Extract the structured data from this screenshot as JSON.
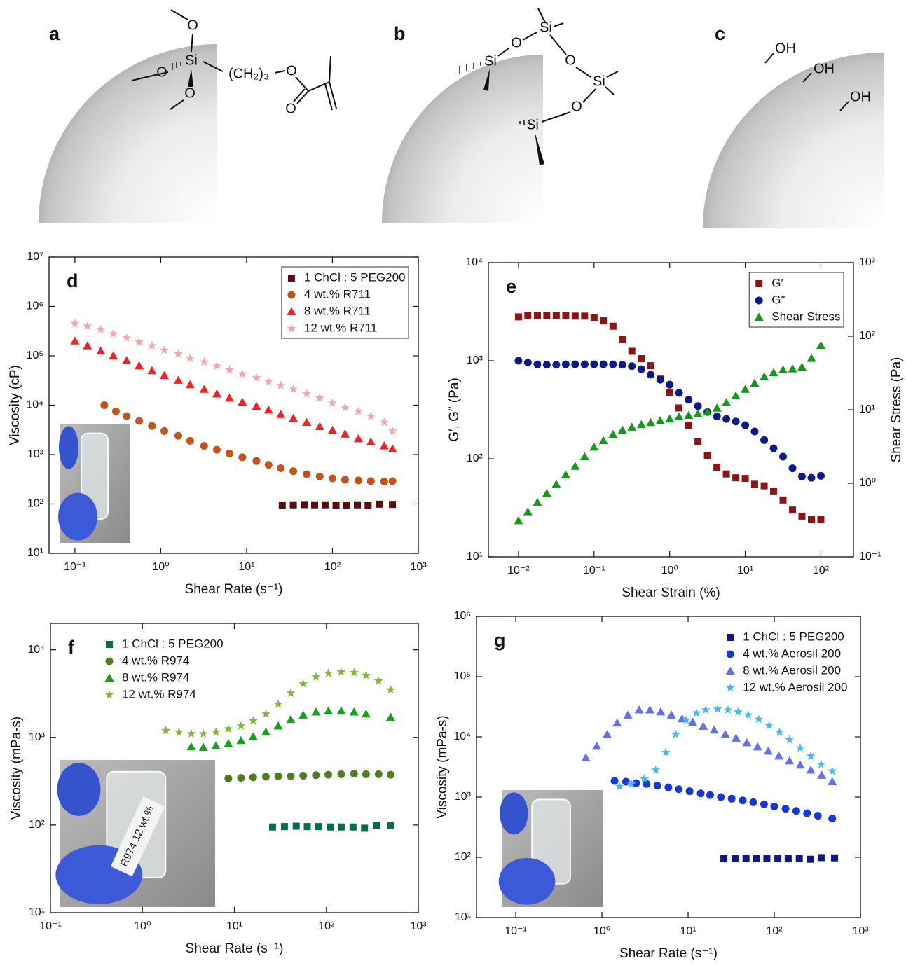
{
  "diagrams": [
    {
      "label": "a",
      "atoms": [
        "O",
        "Si",
        "O",
        "O",
        "(CH₂)₃",
        "O",
        "O"
      ]
    },
    {
      "label": "b",
      "atoms": [
        "Si",
        "O",
        "Si",
        "O",
        "Si",
        "O",
        "Si"
      ]
    },
    {
      "label": "c",
      "atoms": [
        "OH",
        "OH",
        "OH"
      ]
    }
  ],
  "chart_data": [
    {
      "type": "scatter",
      "panel_label": "d",
      "xlabel": "Shear Rate (s⁻¹)",
      "ylabel": "Viscosity (cP)",
      "xlog": true,
      "ylog": true,
      "xlim": [
        0.05,
        1000
      ],
      "ylim": [
        10,
        10000000
      ],
      "xticks": [
        {
          "value": 0.1,
          "label": "10⁻¹"
        },
        {
          "value": 1,
          "label": "10⁰"
        },
        {
          "value": 10,
          "label": "10¹"
        },
        {
          "value": 100,
          "label": "10²"
        },
        {
          "value": 1000,
          "label": "10³"
        }
      ],
      "yticks": [
        {
          "value": 10,
          "label": "10¹"
        },
        {
          "value": 100,
          "label": "10²"
        },
        {
          "value": 1000,
          "label": "10³"
        },
        {
          "value": 10000,
          "label": "10⁴"
        },
        {
          "value": 100000,
          "label": "10⁵"
        },
        {
          "value": 1000000,
          "label": "10⁶"
        },
        {
          "value": 10000000,
          "label": "10⁷"
        }
      ],
      "legend": "upper right",
      "legend_frame": true,
      "series": [
        {
          "name": "1 ChCl : 5 PEG200",
          "color": "#5a0b0e",
          "marker": "square",
          "x": [
            26,
            35,
            47,
            62,
            82,
            110,
            145,
            195,
            260,
            350,
            500
          ],
          "values": [
            95,
            96,
            97,
            96,
            96,
            95,
            95,
            96,
            93,
            99,
            98
          ]
        },
        {
          "name": "4 wt.% R711",
          "color": "#c0541c",
          "marker": "circle",
          "x": [
            0.22,
            0.3,
            0.4,
            0.56,
            0.79,
            1.1,
            1.6,
            2.2,
            3.2,
            4.5,
            6.3,
            8.9,
            13,
            18,
            25,
            35,
            50,
            71,
            100,
            140,
            200,
            280,
            400,
            500
          ],
          "values": [
            10000,
            7500,
            6000,
            4800,
            3800,
            3000,
            2400,
            1900,
            1500,
            1250,
            1050,
            880,
            740,
            620,
            530,
            460,
            400,
            360,
            330,
            310,
            300,
            290,
            285,
            290
          ]
        },
        {
          "name": "8 wt.% R711",
          "color": "#f52020",
          "marker": "triangle",
          "x": [
            0.1,
            0.14,
            0.2,
            0.28,
            0.4,
            0.56,
            0.79,
            1.1,
            1.6,
            2.2,
            3.2,
            4.5,
            6.3,
            8.9,
            13,
            18,
            25,
            35,
            50,
            71,
            100,
            140,
            200,
            280,
            400,
            500
          ],
          "values": [
            200000,
            160000,
            125000,
            100000,
            80000,
            63000,
            50000,
            40000,
            32000,
            26000,
            21000,
            17000,
            14000,
            11500,
            9500,
            8000,
            6500,
            5400,
            4500,
            3700,
            3100,
            2600,
            2100,
            1800,
            1500,
            1300
          ]
        },
        {
          "name": "12 wt.% R711",
          "color": "#f6a5a5",
          "marker": "star",
          "x": [
            0.1,
            0.14,
            0.2,
            0.28,
            0.4,
            0.56,
            0.79,
            1.1,
            1.6,
            2.2,
            3.2,
            4.5,
            6.3,
            8.9,
            13,
            18,
            25,
            35,
            50,
            71,
            100,
            140,
            200,
            280,
            400,
            500
          ],
          "values": [
            450000,
            400000,
            340000,
            280000,
            230000,
            190000,
            160000,
            130000,
            110000,
            90000,
            75000,
            62000,
            52000,
            43000,
            36000,
            30000,
            25000,
            21000,
            17000,
            14000,
            11000,
            9000,
            7500,
            6000,
            4500,
            3000
          ]
        }
      ]
    },
    {
      "type": "scatter",
      "panel_label": "e",
      "xlabel": "Shear Strain (%)",
      "ylabel": "G′, G″ (Pa)",
      "y2label": "Shear Stress (Pa)",
      "xlog": true,
      "ylog": true,
      "y2log": true,
      "xlim": [
        0.004,
        270
      ],
      "ylim": [
        10,
        10000
      ],
      "y2lim": [
        0.1,
        1000
      ],
      "xticks": [
        {
          "value": 0.01,
          "label": "10⁻²"
        },
        {
          "value": 0.1,
          "label": "10⁻¹"
        },
        {
          "value": 1,
          "label": "10⁰"
        },
        {
          "value": 10,
          "label": "10¹"
        },
        {
          "value": 100,
          "label": "10²"
        }
      ],
      "yticks": [
        {
          "value": 10,
          "label": "10¹"
        },
        {
          "value": 100,
          "label": "10²"
        },
        {
          "value": 1000,
          "label": "10³"
        },
        {
          "value": 10000,
          "label": "10⁴"
        }
      ],
      "y2ticks": [
        {
          "value": 0.1,
          "label": "10⁻¹"
        },
        {
          "value": 1,
          "label": "10⁰"
        },
        {
          "value": 10,
          "label": "10¹"
        },
        {
          "value": 100,
          "label": "10²"
        },
        {
          "value": 1000,
          "label": "10³"
        }
      ],
      "legend": "upper right",
      "legend_frame": true,
      "x": [
        0.01,
        0.0133,
        0.0178,
        0.0237,
        0.0316,
        0.0422,
        0.0562,
        0.075,
        0.1,
        0.133,
        0.178,
        0.237,
        0.316,
        0.422,
        0.562,
        0.75,
        1,
        1.33,
        1.78,
        2.37,
        3.16,
        4.22,
        5.62,
        7.5,
        10,
        13.3,
        17.8,
        23.7,
        31.6,
        42.2,
        56.2,
        75,
        100
      ],
      "series": [
        {
          "name": "G′",
          "color": "#8c1414",
          "marker": "square",
          "values": [
            2800,
            2900,
            2900,
            2900,
            2900,
            2900,
            2850,
            2850,
            2750,
            2550,
            2250,
            1650,
            1250,
            1050,
            890,
            650,
            470,
            330,
            220,
            150,
            107,
            82,
            70,
            64,
            63,
            55,
            53,
            47,
            38,
            30,
            26,
            24,
            24
          ]
        },
        {
          "name": "G″",
          "color": "#0a1a8a",
          "marker": "circle",
          "values": [
            1000,
            960,
            920,
            910,
            910,
            920,
            920,
            920,
            920,
            920,
            920,
            910,
            880,
            820,
            720,
            640,
            570,
            470,
            400,
            345,
            300,
            270,
            255,
            240,
            220,
            190,
            155,
            128,
            105,
            80,
            66,
            64,
            67
          ]
        },
        {
          "name": "Shear Stress",
          "color": "#16981c",
          "marker": "triangle",
          "axis": "y2",
          "values": [
            0.31,
            0.41,
            0.55,
            0.73,
            0.97,
            1.3,
            1.7,
            2.3,
            3.1,
            3.8,
            4.6,
            5.3,
            5.8,
            6.3,
            6.7,
            7.1,
            7.5,
            8,
            8.4,
            8.8,
            9.3,
            10.5,
            12.5,
            15.5,
            19,
            23,
            28,
            32,
            35,
            36,
            38,
            50,
            75
          ]
        }
      ]
    },
    {
      "type": "scatter",
      "panel_label": "f",
      "xlabel": "Shear Rate (s⁻¹)",
      "ylabel": "Viscosity (mPa-s)",
      "xlog": true,
      "ylog": true,
      "xlim": [
        0.1,
        1000
      ],
      "ylim": [
        10,
        20000
      ],
      "xticks": [
        {
          "value": 0.1,
          "label": "10⁻¹"
        },
        {
          "value": 1,
          "label": "10⁰"
        },
        {
          "value": 10,
          "label": "10¹"
        },
        {
          "value": 100,
          "label": "10²"
        },
        {
          "value": 1000,
          "label": "10³"
        }
      ],
      "yticks": [
        {
          "value": 10,
          "label": "10¹"
        },
        {
          "value": 100,
          "label": "10²"
        },
        {
          "value": 1000,
          "label": "10³"
        },
        {
          "value": 10000,
          "label": "10⁴"
        }
      ],
      "legend": "upper left",
      "legend_frame": false,
      "inset_text": "R974 12 wt.%",
      "series": [
        {
          "name": "1 ChCl : 5 PEG200",
          "color": "#0b6a48",
          "marker": "square",
          "x": [
            26,
            35,
            47,
            62,
            82,
            110,
            145,
            195,
            260,
            350,
            500
          ],
          "values": [
            95,
            96,
            97,
            96,
            96,
            95,
            95,
            95,
            92,
            99,
            98
          ]
        },
        {
          "name": "4 wt.% R974",
          "color": "#4e7d20",
          "marker": "circle",
          "x": [
            8.6,
            11.8,
            16,
            22,
            30,
            41,
            56,
            77,
            105,
            145,
            200,
            270,
            370,
            500
          ],
          "values": [
            340,
            345,
            350,
            355,
            360,
            360,
            365,
            370,
            375,
            380,
            385,
            380,
            380,
            375
          ]
        },
        {
          "name": "8 wt.% R974",
          "color": "#18a018",
          "marker": "triangle",
          "x": [
            3.4,
            4.6,
            6.3,
            8.6,
            11.8,
            16,
            22,
            30,
            41,
            56,
            77,
            105,
            145,
            200,
            270,
            500
          ],
          "values": [
            780,
            770,
            800,
            850,
            920,
            1020,
            1150,
            1350,
            1600,
            1800,
            1950,
            2000,
            2000,
            1950,
            1850,
            1700
          ]
        },
        {
          "name": "12 wt.% R974",
          "color": "#80b838",
          "marker": "star",
          "x": [
            1.8,
            2.5,
            3.4,
            4.6,
            6.3,
            8.6,
            11.8,
            16,
            22,
            30,
            41,
            56,
            77,
            105,
            145,
            200,
            270,
            370,
            500
          ],
          "values": [
            1200,
            1150,
            1100,
            1100,
            1150,
            1250,
            1350,
            1550,
            1850,
            2400,
            3200,
            4100,
            4900,
            5400,
            5600,
            5500,
            5100,
            4400,
            3500
          ]
        }
      ]
    },
    {
      "type": "scatter",
      "panel_label": "g",
      "xlabel": "Shear Rate (s⁻¹)",
      "ylabel": "Viscosity (mPa-s)",
      "xlog": true,
      "ylog": true,
      "xlim": [
        0.035,
        1000
      ],
      "ylim": [
        10,
        1000000
      ],
      "xticks": [
        {
          "value": 0.1,
          "label": "10⁻¹"
        },
        {
          "value": 1,
          "label": "10⁰"
        },
        {
          "value": 10,
          "label": "10¹"
        },
        {
          "value": 100,
          "label": "10²"
        },
        {
          "value": 1000,
          "label": "10³"
        }
      ],
      "yticks": [
        {
          "value": 10,
          "label": "10¹"
        },
        {
          "value": 100,
          "label": "10²"
        },
        {
          "value": 1000,
          "label": "10³"
        },
        {
          "value": 10000,
          "label": "10⁴"
        },
        {
          "value": 100000,
          "label": "10⁵"
        },
        {
          "value": 1000000,
          "label": "10⁶"
        }
      ],
      "legend": "upper right",
      "legend_frame": false,
      "series": [
        {
          "name": "1 ChCl : 5 PEG200",
          "color": "#0b1a88",
          "marker": "square",
          "x": [
            26,
            35,
            47,
            62,
            82,
            110,
            145,
            195,
            260,
            350,
            500
          ],
          "values": [
            95,
            96,
            97,
            96,
            96,
            95,
            95,
            96,
            93,
            99,
            98
          ]
        },
        {
          "name": "4 wt.% Aerosil 200",
          "color": "#1636d8",
          "marker": "circle",
          "x": [
            1.4,
            1.9,
            2.5,
            3.3,
            4.4,
            5.9,
            7.8,
            10.4,
            14,
            18,
            24,
            32,
            43,
            57,
            76,
            100,
            135,
            180,
            240,
            320,
            470
          ],
          "values": [
            1850,
            1800,
            1700,
            1650,
            1550,
            1450,
            1350,
            1250,
            1150,
            1080,
            1000,
            940,
            880,
            820,
            760,
            700,
            640,
            590,
            540,
            490,
            440
          ]
        },
        {
          "name": "8 wt.% Aerosil 200",
          "color": "#6070ee",
          "marker": "triangle",
          "x": [
            0.65,
            0.87,
            1.15,
            1.5,
            2,
            2.7,
            3.6,
            4.8,
            6.4,
            8.5,
            11.3,
            15,
            20,
            27,
            36,
            48,
            64,
            85,
            113,
            150,
            200,
            265,
            355,
            470
          ],
          "values": [
            4500,
            7000,
            11000,
            17000,
            23000,
            28000,
            28000,
            26000,
            23000,
            20000,
            17500,
            15000,
            13000,
            11000,
            9500,
            8000,
            6800,
            5800,
            4800,
            4000,
            3400,
            2800,
            2300,
            1800
          ]
        },
        {
          "name": "12 wt.% Aerosil 200",
          "color": "#48b8f0",
          "marker": "star",
          "x": [
            1.6,
            2.2,
            3.1,
            4.2,
            5.5,
            7.2,
            9.5,
            12.5,
            16,
            22,
            29,
            38,
            50,
            66,
            87,
            115,
            150,
            200,
            265,
            350,
            470
          ],
          "values": [
            1500,
            1650,
            2000,
            2800,
            5500,
            11000,
            19000,
            25000,
            28000,
            29000,
            28000,
            26000,
            23000,
            19500,
            15500,
            12000,
            9000,
            6500,
            4800,
            3500,
            2700
          ]
        }
      ]
    }
  ]
}
